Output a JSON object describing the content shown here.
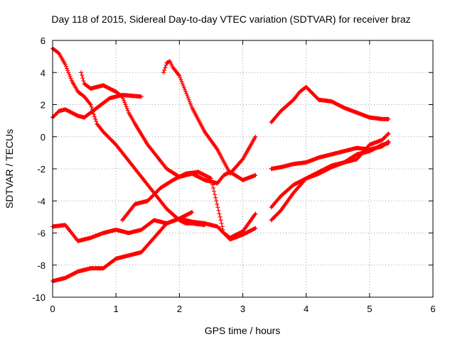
{
  "chart_data": {
    "type": "scatter",
    "title": "Day 118 of 2015, Sidereal Day-to-day VTEC variation (SDTVAR) for receiver braz",
    "xlabel": "GPS time / hours",
    "ylabel": "SDTVAR / TECUs",
    "xlim": [
      0,
      6
    ],
    "ylim": [
      -10,
      6
    ],
    "x_ticks": [
      "0",
      "1",
      "2",
      "3",
      "4",
      "5",
      "6"
    ],
    "y_ticks": [
      "6",
      "4",
      "2",
      "0",
      "-2",
      "-4",
      "-6",
      "-8",
      "-10"
    ],
    "grid": true,
    "legend": "none",
    "marker": "plus",
    "series_color": "#ff0000",
    "series": [
      {
        "x": [
          0.0,
          0.1,
          0.2,
          0.3,
          0.4,
          0.5,
          0.6,
          0.7,
          0.8,
          1.0,
          1.2,
          1.4,
          1.6,
          1.8,
          2.0,
          2.1,
          2.2,
          2.4
        ],
        "y": [
          5.5,
          5.2,
          4.5,
          3.5,
          2.8,
          2.5,
          2.0,
          0.8,
          0.3,
          -0.5,
          -1.5,
          -2.5,
          -3.5,
          -4.5,
          -5.2,
          -5.4,
          -5.4,
          -5.5
        ]
      },
      {
        "x": [
          0.0,
          0.1,
          0.2,
          0.3,
          0.4,
          0.5,
          0.7,
          0.9,
          1.1,
          1.4
        ],
        "y": [
          1.2,
          1.6,
          1.7,
          1.5,
          1.3,
          1.2,
          1.8,
          2.4,
          2.6,
          2.5
        ]
      },
      {
        "x": [
          0.45,
          0.5,
          0.6,
          0.8,
          1.0,
          1.1,
          1.2,
          1.3,
          1.5,
          1.6,
          1.8,
          2.0,
          2.2,
          2.4,
          2.6,
          2.7,
          2.8,
          3.0,
          3.2
        ],
        "y": [
          4.0,
          3.3,
          3.0,
          3.2,
          2.8,
          2.5,
          1.5,
          0.8,
          -0.5,
          -1.0,
          -2.0,
          -2.5,
          -2.3,
          -2.7,
          -2.9,
          -2.4,
          -2.2,
          -2.7,
          -2.4
        ]
      },
      {
        "x": [
          1.75,
          1.8,
          1.85,
          1.9,
          2.0,
          2.1,
          2.2,
          2.4,
          2.6,
          2.8,
          3.0,
          3.2
        ],
        "y": [
          4.0,
          4.6,
          4.7,
          4.3,
          3.8,
          2.8,
          1.8,
          0.3,
          -0.8,
          -2.3,
          -1.4,
          0.0
        ]
      },
      {
        "x": [
          0.0,
          0.2,
          0.4,
          0.6,
          0.8,
          1.0,
          1.2,
          1.4,
          1.6,
          1.8,
          2.0,
          2.2
        ],
        "y": [
          -5.6,
          -5.5,
          -6.5,
          -6.3,
          -6.0,
          -5.8,
          -6.0,
          -5.8,
          -5.2,
          -5.4,
          -5.1,
          -4.7
        ]
      },
      {
        "x": [
          0.0,
          0.2,
          0.4,
          0.6,
          0.8,
          1.0,
          1.2,
          1.4,
          1.6,
          1.8,
          2.0,
          2.2,
          2.4,
          2.6,
          2.8,
          3.0,
          3.2
        ],
        "y": [
          -9.0,
          -8.8,
          -8.4,
          -8.2,
          -8.2,
          -7.6,
          -7.4,
          -7.2,
          -6.3,
          -5.4,
          -5.1,
          -5.3,
          -5.4,
          -5.6,
          -6.4,
          -6.1,
          -5.7
        ]
      },
      {
        "x": [
          1.1,
          1.3,
          1.5,
          1.7,
          1.9,
          2.1,
          2.3,
          2.5,
          2.7,
          2.8,
          3.0,
          3.2
        ],
        "y": [
          -5.2,
          -4.2,
          -4.0,
          -3.2,
          -2.7,
          -2.3,
          -2.2,
          -2.6,
          -6.0,
          -6.3,
          -5.9,
          -4.8
        ]
      },
      {
        "x": [
          3.45,
          3.6,
          3.8,
          3.9,
          4.0,
          4.2,
          4.4,
          4.6,
          4.8,
          5.0,
          5.2,
          5.3
        ],
        "y": [
          0.9,
          1.6,
          2.3,
          2.8,
          3.1,
          2.3,
          2.2,
          1.8,
          1.5,
          1.2,
          1.1,
          1.1
        ]
      },
      {
        "x": [
          3.45,
          3.6,
          3.8,
          4.0,
          4.2,
          4.4,
          4.6,
          4.8,
          5.0,
          5.2,
          5.3
        ],
        "y": [
          -2.0,
          -1.9,
          -1.7,
          -1.6,
          -1.3,
          -1.1,
          -0.9,
          -0.7,
          -0.8,
          -0.6,
          -0.3
        ]
      },
      {
        "x": [
          3.45,
          3.6,
          3.8,
          4.0,
          4.2,
          4.4,
          4.6,
          4.8,
          5.0,
          5.2,
          5.3
        ],
        "y": [
          -4.4,
          -3.7,
          -3.0,
          -2.6,
          -2.2,
          -1.8,
          -1.6,
          -1.4,
          -0.5,
          -0.2,
          0.2
        ]
      },
      {
        "x": [
          3.45,
          3.6,
          3.8,
          4.0,
          4.2,
          4.4,
          4.6,
          4.8,
          5.0,
          5.2,
          5.3
        ],
        "y": [
          -5.2,
          -4.6,
          -3.5,
          -2.6,
          -2.3,
          -1.9,
          -1.6,
          -1.1,
          -0.9,
          -0.5,
          -0.4
        ]
      }
    ]
  }
}
